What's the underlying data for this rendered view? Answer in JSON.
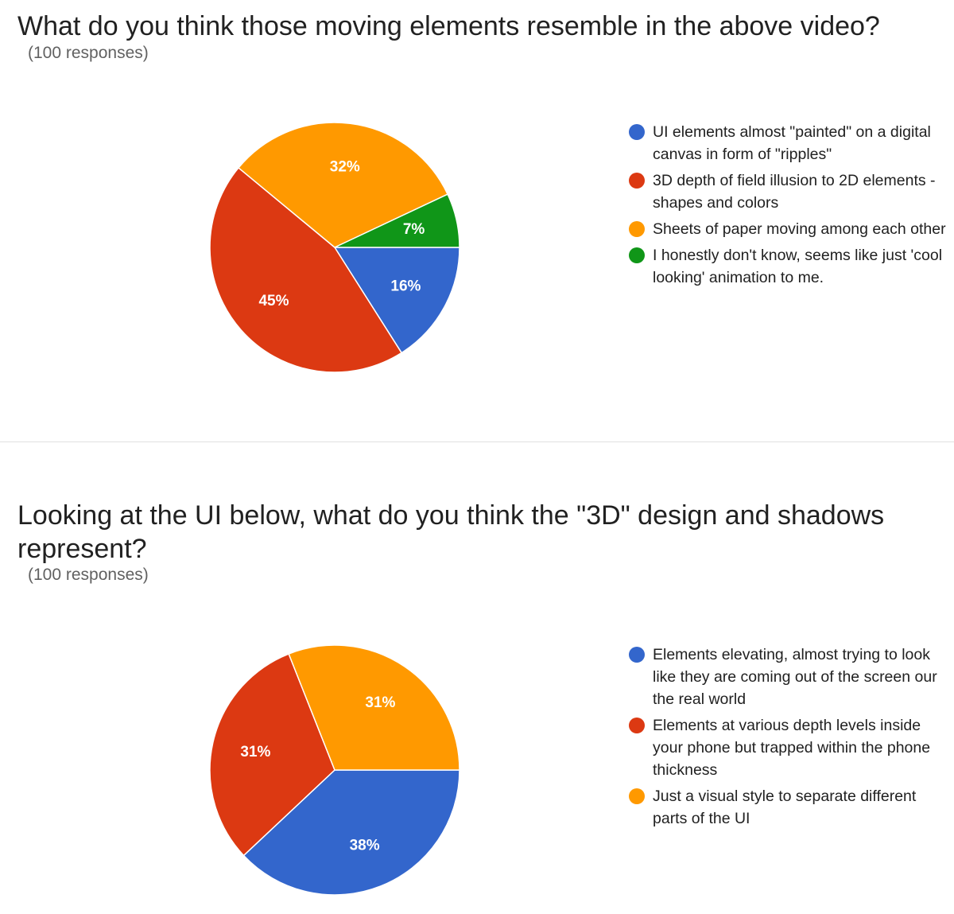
{
  "chart_data": [
    {
      "type": "pie",
      "title": "What do you think those moving elements resemble in the above video?",
      "subtitle": "(100 responses)",
      "slices": [
        {
          "label": "UI elements almost \"painted\" on a digital canvas in form of \"ripples\"",
          "value": 16,
          "display": "16%",
          "color": "#3366cc"
        },
        {
          "label": "3D depth of field illusion to 2D elements - shapes and colors",
          "value": 45,
          "display": "45%",
          "color": "#dc3912"
        },
        {
          "label": "Sheets of paper moving among each other",
          "value": 32,
          "display": "32%",
          "color": "#ff9900"
        },
        {
          "label": "I honestly don't know, seems like just 'cool looking' animation to me.",
          "value": 7,
          "display": "7%",
          "color": "#109618"
        }
      ],
      "legend_position": "right"
    },
    {
      "type": "pie",
      "title": "Looking at the UI below, what do you think the \"3D\" design and shadows represent?",
      "subtitle": "(100 responses)",
      "slices": [
        {
          "label": "Elements elevating, almost trying to look like they are coming out of the screen our the real world",
          "value": 38,
          "display": "38%",
          "color": "#3366cc"
        },
        {
          "label": "Elements at various depth levels inside your phone but trapped within the phone thickness",
          "value": 31,
          "display": "31%",
          "color": "#dc3912"
        },
        {
          "label": "Just a visual style to separate different parts of the UI",
          "value": 31,
          "display": "31%",
          "color": "#ff9900"
        }
      ],
      "legend_position": "right"
    }
  ]
}
